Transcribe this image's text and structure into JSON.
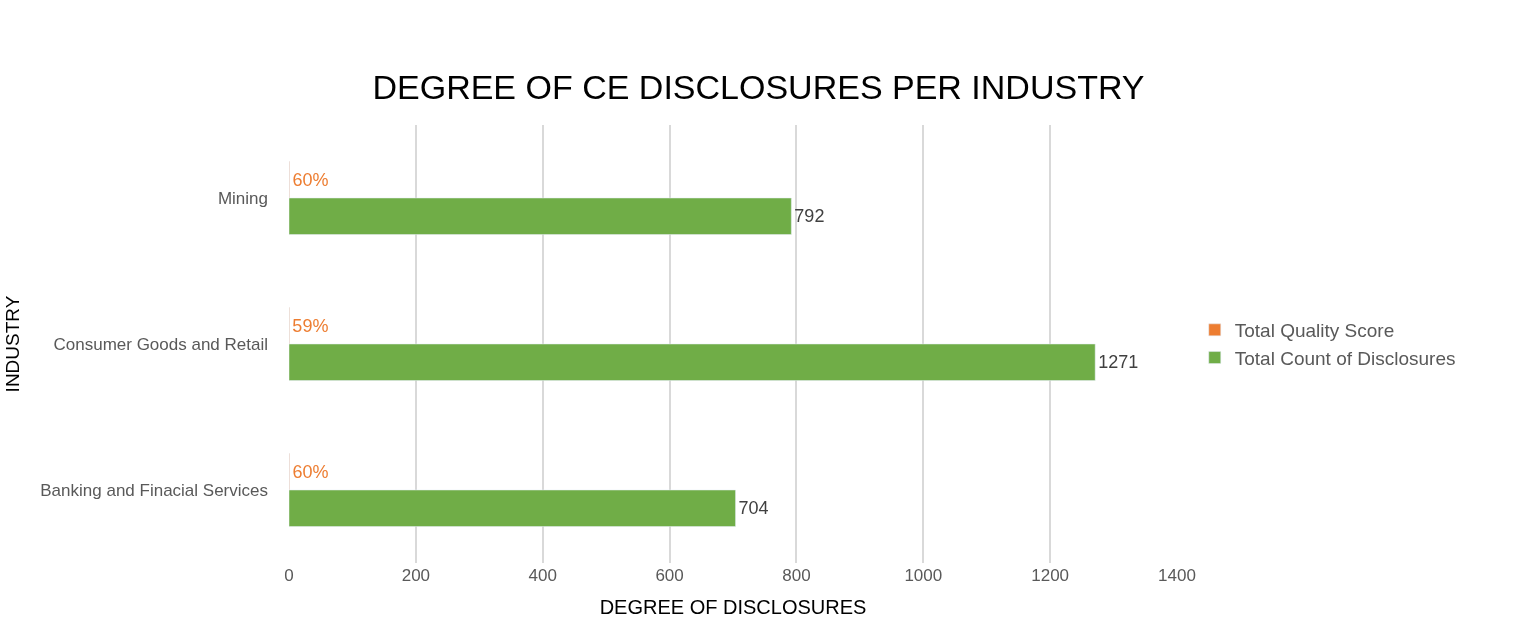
{
  "chart_data": {
    "type": "bar",
    "orientation": "horizontal",
    "title": "DEGREE OF CE DISCLOSURES PER INDUSTRY",
    "xlabel": "DEGREE OF DISCLOSURES",
    "ylabel": "INDUSTRY",
    "categories": [
      "Mining",
      "Consumer Goods and Retail",
      "Banking and Finacial Services"
    ],
    "series": [
      {
        "name": "Total Quality Score",
        "color": "#ed7d31",
        "values": [
          0.6,
          0.59,
          0.6
        ],
        "value_labels": [
          "60%",
          "59%",
          "60%"
        ]
      },
      {
        "name": "Total Count of Disclosures",
        "color": "#70ad47",
        "values": [
          792,
          1271,
          704
        ],
        "value_labels": [
          "792",
          "1271",
          "704"
        ]
      }
    ],
    "xlim": [
      0,
      1400
    ],
    "xticks": [
      0,
      200,
      400,
      600,
      800,
      1000,
      1200,
      1400
    ],
    "grid": "x",
    "legend": "right"
  }
}
